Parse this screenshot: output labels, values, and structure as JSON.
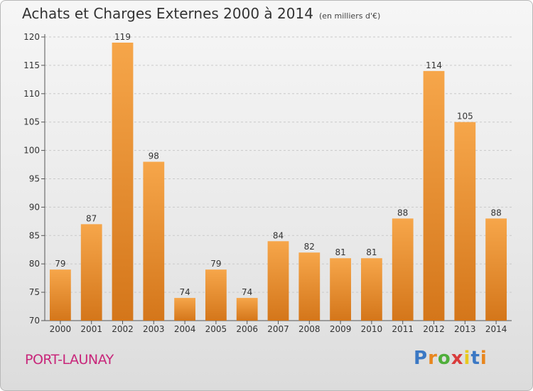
{
  "title": "Achats et Charges Externes 2000 à 2014",
  "unit": "(en milliers d'€)",
  "commune": "PORT-LAUNAY",
  "logo": "Proxiti",
  "logo_colors": [
    "#3b78c4",
    "#e8861e",
    "#4fae3a",
    "#d93c3c",
    "#e8c91e",
    "#3b78c4",
    "#e8861e"
  ],
  "colors": {
    "bar_top": "#f6a64a",
    "bar_bottom": "#d4761a",
    "accent": "#c8267a"
  },
  "chart_data": {
    "type": "bar",
    "categories": [
      "2000",
      "2001",
      "2002",
      "2003",
      "2004",
      "2005",
      "2006",
      "2007",
      "2008",
      "2009",
      "2010",
      "2011",
      "2012",
      "2013",
      "2014"
    ],
    "values": [
      79,
      87,
      119,
      98,
      74,
      79,
      74,
      84,
      82,
      81,
      81,
      88,
      114,
      105,
      88
    ],
    "ylim": [
      70,
      120
    ],
    "yticks": [
      70,
      75,
      80,
      85,
      90,
      95,
      100,
      105,
      110,
      115,
      120
    ],
    "grid": true
  }
}
